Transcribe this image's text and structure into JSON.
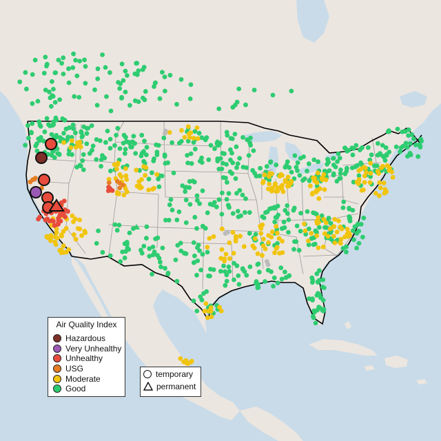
{
  "legend": {
    "title": "Air Quality Index",
    "categories": [
      {
        "label": "Hazardous",
        "color": "#7e3028"
      },
      {
        "label": "Very Unhealthy",
        "color": "#9b59b6"
      },
      {
        "label": "Unhealthy",
        "color": "#e74c3c"
      },
      {
        "label": "USG",
        "color": "#e67e22"
      },
      {
        "label": "Moderate",
        "color": "#f1c40f"
      },
      {
        "label": "Good",
        "color": "#2ecc71"
      }
    ]
  },
  "monitor_legend": {
    "temporary_label": "temporary",
    "permanent_label": "permanent"
  },
  "colors": {
    "water": "#c9dbe8",
    "land": "#ece6e0",
    "land_south": "#f0ebe5",
    "state_border": "#999999",
    "country_border": "#000000",
    "no_data": "#bbbbbb"
  }
}
